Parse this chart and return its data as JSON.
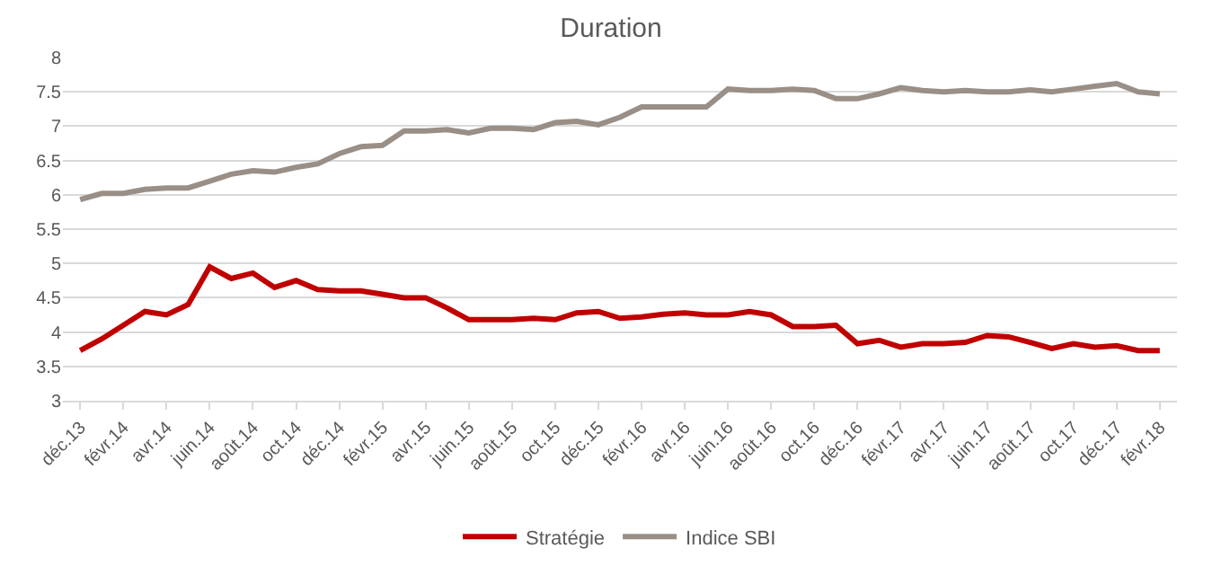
{
  "chart_data": {
    "type": "line",
    "title": "Duration",
    "categories": [
      "déc.13",
      null,
      "févr.14",
      null,
      "avr.14",
      null,
      "juin.14",
      null,
      "août.14",
      null,
      "oct.14",
      null,
      "déc.14",
      null,
      "févr.15",
      null,
      "avr.15",
      null,
      "juin.15",
      null,
      "août.15",
      null,
      "oct.15",
      null,
      "déc.15",
      null,
      "févr.16",
      null,
      "avr.16",
      null,
      "juin.16",
      null,
      "août.16",
      null,
      "oct.16",
      null,
      "déc.16",
      null,
      "févr.17",
      null,
      "avr.17",
      null,
      "juin.17",
      null,
      "août.17",
      null,
      "oct.17",
      null,
      "déc.17",
      null,
      "févr.18"
    ],
    "series": [
      {
        "name": "Stratégie",
        "color": "#c00000",
        "values": [
          3.73,
          3.9,
          4.1,
          4.3,
          4.25,
          4.4,
          4.95,
          4.78,
          4.86,
          4.65,
          4.75,
          4.62,
          4.6,
          4.6,
          4.55,
          4.5,
          4.5,
          4.35,
          4.18,
          4.18,
          4.18,
          4.2,
          4.18,
          4.28,
          4.3,
          4.2,
          4.22,
          4.26,
          4.28,
          4.25,
          4.25,
          4.3,
          4.25,
          4.08,
          4.08,
          4.1,
          3.83,
          3.88,
          3.78,
          3.83,
          3.83,
          3.85,
          3.95,
          3.93,
          3.85,
          3.76,
          3.83,
          3.78,
          3.8,
          3.73,
          3.73
        ]
      },
      {
        "name": "Indice SBI",
        "color": "#998f87",
        "values": [
          5.93,
          6.02,
          6.02,
          6.08,
          6.1,
          6.1,
          6.2,
          6.3,
          6.35,
          6.33,
          6.4,
          6.45,
          6.6,
          6.7,
          6.72,
          6.93,
          6.93,
          6.95,
          6.9,
          6.97,
          6.97,
          6.95,
          7.05,
          7.07,
          7.02,
          7.13,
          7.28,
          7.28,
          7.28,
          7.28,
          7.54,
          7.52,
          7.52,
          7.54,
          7.52,
          7.4,
          7.4,
          7.47,
          7.56,
          7.52,
          7.5,
          7.52,
          7.5,
          7.5,
          7.53,
          7.5,
          7.54,
          7.58,
          7.62,
          7.5,
          7.47
        ]
      }
    ],
    "ylim": [
      3,
      8
    ],
    "yticks": [
      3,
      3.5,
      4,
      4.5,
      5,
      5.5,
      6,
      6.5,
      7,
      7.5,
      8
    ],
    "grid": "y",
    "legend": "bottom",
    "marker": "none",
    "line_style": "solid"
  }
}
